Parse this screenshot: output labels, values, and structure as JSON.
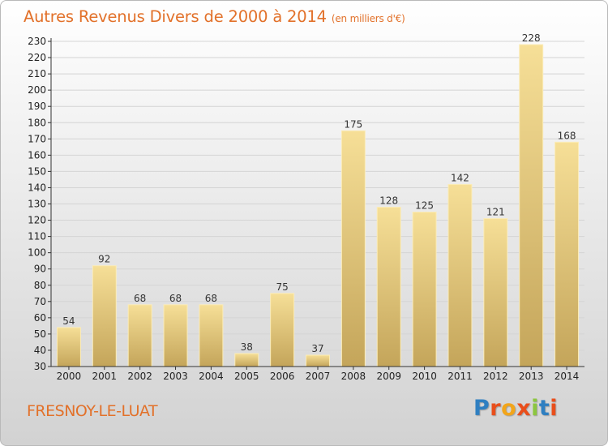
{
  "title": "Autres Revenus Divers de 2000 à 2014",
  "title_unit": "(en milliers d'€)",
  "town": "FRESNOY-LE-LUAT",
  "logo": "Proxiti",
  "colors": {
    "title": "#e2712a",
    "bar_light": "#f6df97",
    "bar_dark": "#c4a55a",
    "grid": "#d4d4d4",
    "axis": "#333333"
  },
  "chart_data": {
    "type": "bar",
    "categories": [
      "2000",
      "2001",
      "2002",
      "2003",
      "2004",
      "2005",
      "2006",
      "2007",
      "2008",
      "2009",
      "2010",
      "2011",
      "2012",
      "2013",
      "2014"
    ],
    "values": [
      54,
      92,
      68,
      68,
      68,
      38,
      75,
      37,
      175,
      128,
      125,
      142,
      121,
      228,
      168
    ],
    "ylim": [
      30,
      230
    ],
    "ytick_step": 10,
    "grid": "horizontal",
    "data_labels": true
  }
}
